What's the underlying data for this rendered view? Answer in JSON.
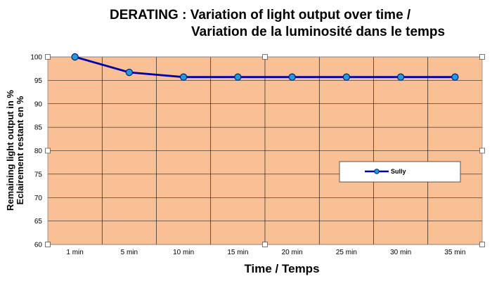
{
  "chart_data": {
    "type": "line",
    "title_line1": "DERATING : Variation of light output over time /",
    "title_line2": "Variation de la luminosité dans le temps",
    "xlabel": "Time / Temps",
    "ylabel_line1": "Remaining light output in %",
    "ylabel_line2": "Eclairement restant en %",
    "categories": [
      "1 min",
      "5 min",
      "10 min",
      "15 min",
      "20 min",
      "25 min",
      "30 min",
      "35 min"
    ],
    "ylim": [
      60,
      100
    ],
    "yticks": [
      60,
      65,
      70,
      75,
      80,
      85,
      90,
      95,
      100
    ],
    "grid": true,
    "legend_position": "right",
    "series": [
      {
        "name": "Sully",
        "values": [
          100,
          96.7,
          95.7,
          95.7,
          95.7,
          95.7,
          95.7,
          95.7
        ]
      }
    ]
  },
  "colors": {
    "plot_background": "#F8C094",
    "gridline": "#000000",
    "series_line": "#0000A8",
    "marker_fill": "#1E9BE0",
    "marker_stroke": "#0A1A70"
  }
}
